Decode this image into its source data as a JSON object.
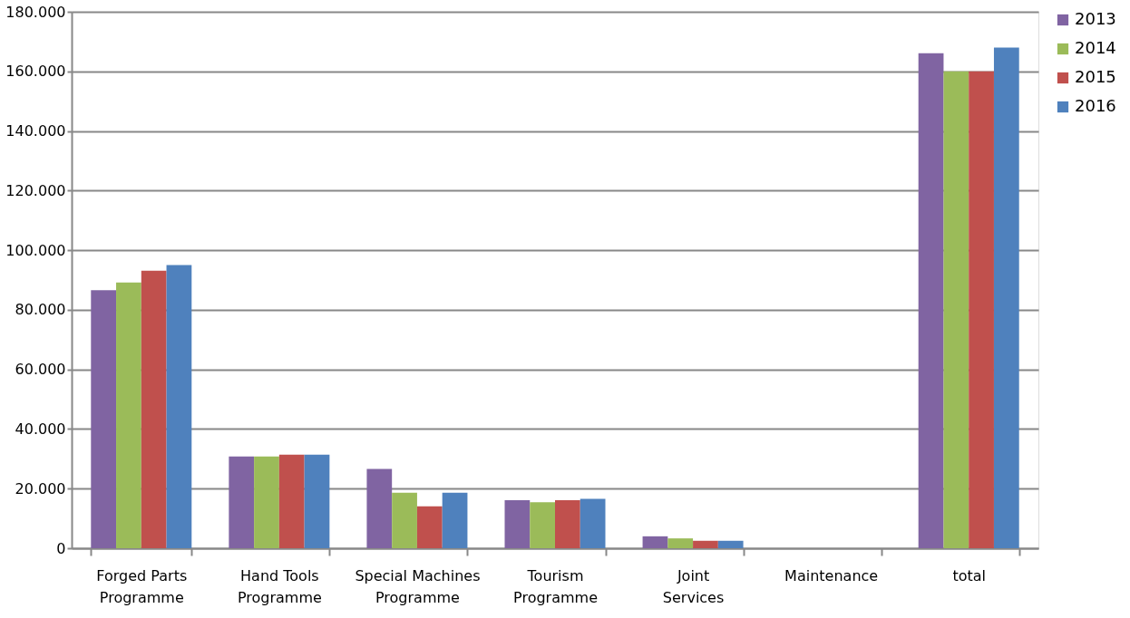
{
  "chart_data": {
    "type": "bar",
    "categories": [
      "Forged Parts Programme",
      "Hand Tools Programme",
      "Special Machines Programme",
      "Tourism Programme",
      "Joint Services",
      "Maintenance",
      "total"
    ],
    "series": [
      {
        "name": "2013",
        "color": "#8064a2",
        "values": [
          86600,
          30800,
          26600,
          16100,
          4000,
          null,
          166100
        ]
      },
      {
        "name": "2014",
        "color": "#9bbb59",
        "values": [
          89200,
          30800,
          18600,
          15400,
          3300,
          null,
          160000
        ]
      },
      {
        "name": "2015",
        "color": "#c0504d",
        "values": [
          93100,
          31400,
          14100,
          16100,
          2500,
          null,
          160000
        ]
      },
      {
        "name": "2016",
        "color": "#4f81bd",
        "values": [
          95000,
          31400,
          18600,
          16600,
          2500,
          null,
          168000
        ]
      }
    ],
    "ylim": [
      0,
      180000
    ],
    "yticks": [
      0,
      {
        "value": 20000,
        "label": "20.000"
      },
      {
        "value": 40000,
        "label": "40.000"
      },
      {
        "value": 60000,
        "label": "60.000"
      },
      {
        "value": 80000,
        "label": "80.000"
      },
      {
        "value": 100000,
        "label": "100.000"
      },
      {
        "value": 120000,
        "label": "120.000"
      },
      {
        "value": 140000,
        "label": "140.000"
      },
      {
        "value": 160000,
        "label": "160.000"
      },
      {
        "value": 180000,
        "label": "180.000"
      }
    ],
    "grid": "y",
    "legend": "right"
  }
}
